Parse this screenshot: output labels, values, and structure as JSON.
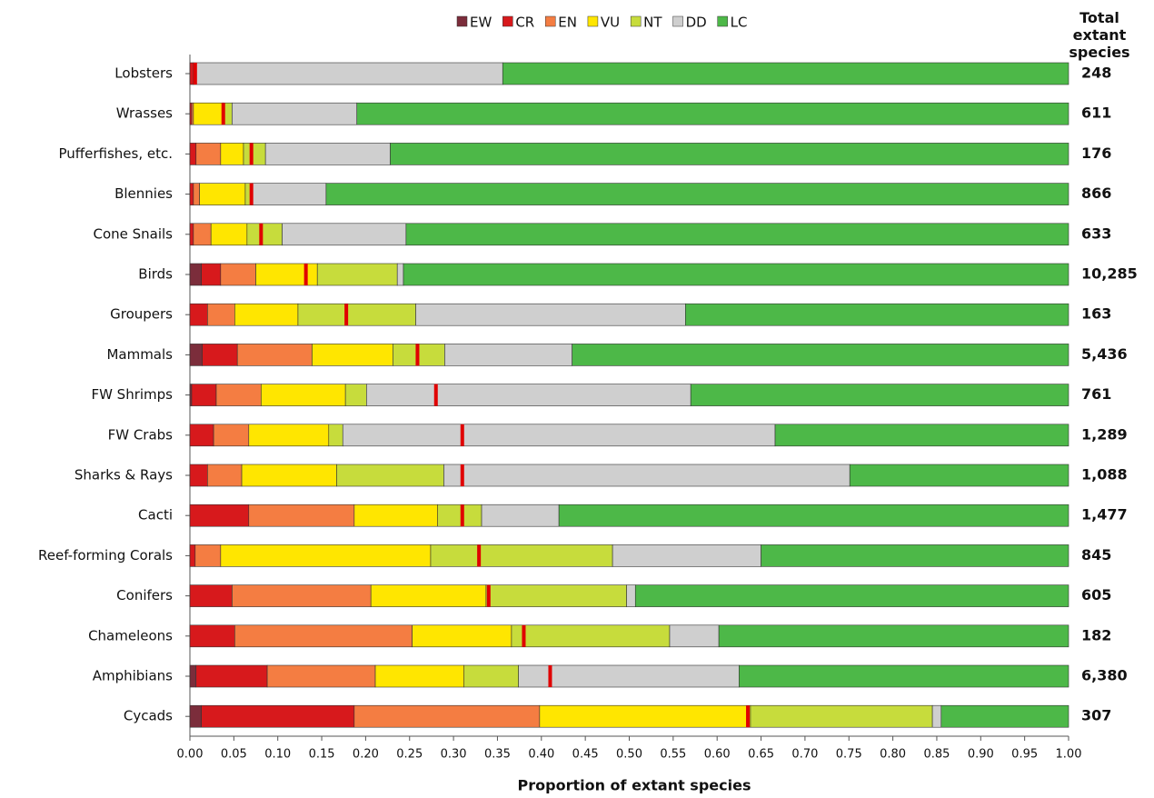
{
  "chart_data": {
    "type": "stacked_barh",
    "xlabel": "Proportion of extant species",
    "totals_header": "Total extant species",
    "categories": [
      "Lobsters",
      "Wrasses",
      "Pufferfishes, etc.",
      "Blennies",
      "Cone Snails",
      "Birds",
      "Groupers",
      "Mammals",
      "FW Shrimps",
      "FW Crabs",
      "Sharks & Rays",
      "Cacti",
      "Reef-forming Corals",
      "Conifers",
      "Chameleons",
      "Amphibians",
      "Cycads"
    ],
    "series": [
      {
        "name": "EW",
        "color": "#7b2d3b",
        "values": [
          0,
          0,
          0,
          0,
          0,
          0.013,
          0,
          0.014,
          0.002,
          0,
          0,
          0,
          0,
          0,
          0,
          0.007,
          0.013
        ]
      },
      {
        "name": "CR",
        "color": "#d7191c",
        "values": [
          0.004,
          0.002,
          0.007,
          0.004,
          0.004,
          0.022,
          0.02,
          0.04,
          0.028,
          0.027,
          0.02,
          0.067,
          0.006,
          0.048,
          0.051,
          0.081,
          0.174
        ]
      },
      {
        "name": "EN",
        "color": "#f47d42",
        "values": [
          0,
          0.002,
          0.028,
          0.007,
          0.02,
          0.04,
          0.031,
          0.085,
          0.051,
          0.04,
          0.039,
          0.12,
          0.029,
          0.158,
          0.202,
          0.123,
          0.211
        ]
      },
      {
        "name": "VU",
        "color": "#ffe600",
        "values": [
          0,
          0.034,
          0.026,
          0.052,
          0.041,
          0.07,
          0.072,
          0.092,
          0.096,
          0.091,
          0.108,
          0.095,
          0.239,
          0.131,
          0.113,
          0.101,
          0.24
        ]
      },
      {
        "name": "NT",
        "color": "#c7dc3c",
        "values": [
          0,
          0.01,
          0.025,
          0.008,
          0.04,
          0.091,
          0.134,
          0.059,
          0.024,
          0.016,
          0.122,
          0.05,
          0.207,
          0.16,
          0.18,
          0.062,
          0.207
        ]
      },
      {
        "name": "DD",
        "color": "#cfcfcf",
        "values": [
          0.352,
          0.142,
          0.142,
          0.084,
          0.141,
          0.007,
          0.307,
          0.145,
          0.369,
          0.492,
          0.462,
          0.088,
          0.169,
          0.01,
          0.056,
          0.251,
          0.01
        ]
      },
      {
        "name": "LC",
        "color": "#4db848",
        "values": [
          0.644,
          0.81,
          0.772,
          0.845,
          0.754,
          0.757,
          0.436,
          0.565,
          0.43,
          0.334,
          0.249,
          0.58,
          0.35,
          0.493,
          0.398,
          0.375,
          0.145
        ]
      }
    ],
    "markers": [
      0.006,
      0.038,
      0.07,
      0.07,
      0.081,
      0.132,
      0.178,
      0.259,
      0.28,
      0.31,
      0.31,
      0.31,
      0.329,
      0.34,
      0.38,
      0.41,
      0.635
    ],
    "marker_color": "#e00000",
    "totals": [
      {
        "value": 248,
        "label": "248"
      },
      {
        "value": 611,
        "label": "611"
      },
      {
        "value": 176,
        "label": "176"
      },
      {
        "value": 866,
        "label": "866"
      },
      {
        "value": 633,
        "label": "633"
      },
      {
        "value": 10285,
        "label": "10,285"
      },
      {
        "value": 163,
        "label": "163"
      },
      {
        "value": 5436,
        "label": "5,436"
      },
      {
        "value": 761,
        "label": "761"
      },
      {
        "value": 1289,
        "label": "1,289"
      },
      {
        "value": 1088,
        "label": "1,088"
      },
      {
        "value": 1477,
        "label": "1,477"
      },
      {
        "value": 845,
        "label": "845"
      },
      {
        "value": 605,
        "label": "605"
      },
      {
        "value": 182,
        "label": "182"
      },
      {
        "value": 6380,
        "label": "6,380"
      },
      {
        "value": 307,
        "label": "307"
      }
    ],
    "xlim": [
      0,
      1
    ],
    "xticks": [
      {
        "value": 0,
        "label": "0.00"
      },
      {
        "value": 0.05,
        "label": "0.05"
      },
      {
        "value": 0.1,
        "label": "0.10"
      },
      {
        "value": 0.15,
        "label": "0.15"
      },
      {
        "value": 0.2,
        "label": "0.20"
      },
      {
        "value": 0.25,
        "label": "0.25"
      },
      {
        "value": 0.3,
        "label": "0.30"
      },
      {
        "value": 0.35,
        "label": "0.35"
      },
      {
        "value": 0.4,
        "label": "0.40"
      },
      {
        "value": 0.45,
        "label": "0.45"
      },
      {
        "value": 0.5,
        "label": "0.50"
      },
      {
        "value": 0.55,
        "label": "0.55"
      },
      {
        "value": 0.6,
        "label": "0.60"
      },
      {
        "value": 0.65,
        "label": "0.65"
      },
      {
        "value": 0.7,
        "label": "0.70"
      },
      {
        "value": 0.75,
        "label": "0.75"
      },
      {
        "value": 0.8,
        "label": "0.80"
      },
      {
        "value": 0.85,
        "label": "0.85"
      },
      {
        "value": 0.9,
        "label": "0.90"
      },
      {
        "value": 0.95,
        "label": "0.95"
      },
      {
        "value": 1,
        "label": "1.00"
      }
    ],
    "legend": "top"
  }
}
